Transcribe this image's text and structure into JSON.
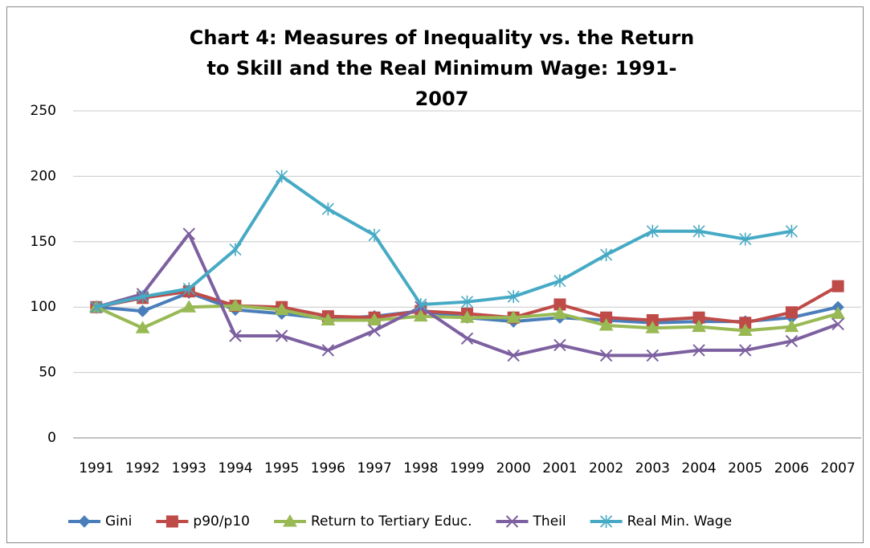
{
  "chart_data": {
    "type": "line",
    "title": "Chart 4: Measures of Inequality vs. the Return to Skill and the Real Minimum Wage: 1991-2007",
    "categories": [
      "1991",
      "1992",
      "1993",
      "1994",
      "1995",
      "1996",
      "1997",
      "1998",
      "1999",
      "2000",
      "2001",
      "2002",
      "2003",
      "2004",
      "2005",
      "2006",
      "2007"
    ],
    "ylim": [
      0,
      250
    ],
    "yticks": [
      0,
      50,
      100,
      150,
      200,
      250
    ],
    "grid": true,
    "legend": "bottom",
    "series": [
      {
        "name": "Gini",
        "color": "#4a7ebb",
        "marker": "diamond",
        "values": [
          100,
          97,
          111,
          98,
          95,
          91,
          93,
          97,
          92,
          89,
          92,
          90,
          88,
          89,
          89,
          92,
          100
        ]
      },
      {
        "name": "p90/p10",
        "color": "#be4b48",
        "marker": "square",
        "values": [
          100,
          107,
          112,
          101,
          100,
          93,
          92,
          97,
          95,
          92,
          102,
          92,
          90,
          92,
          88,
          96,
          116
        ]
      },
      {
        "name": "Return to Tertiary Educ.",
        "color": "#98b954",
        "marker": "triangle",
        "values": [
          100,
          84,
          100,
          101,
          98,
          90,
          90,
          93,
          92,
          92,
          95,
          86,
          84,
          85,
          82,
          85,
          95
        ]
      },
      {
        "name": "Theil",
        "color": "#7d60a0",
        "marker": "x",
        "values": [
          100,
          110,
          156,
          78,
          78,
          67,
          82,
          100,
          76,
          63,
          71,
          63,
          63,
          67,
          67,
          74,
          87
        ]
      },
      {
        "name": "Real Min. Wage",
        "color": "#46aac5",
        "marker": "star",
        "values": [
          100,
          108,
          114,
          144,
          200,
          175,
          155,
          102,
          104,
          108,
          120,
          140,
          158,
          158,
          152,
          158,
          null
        ]
      }
    ]
  }
}
